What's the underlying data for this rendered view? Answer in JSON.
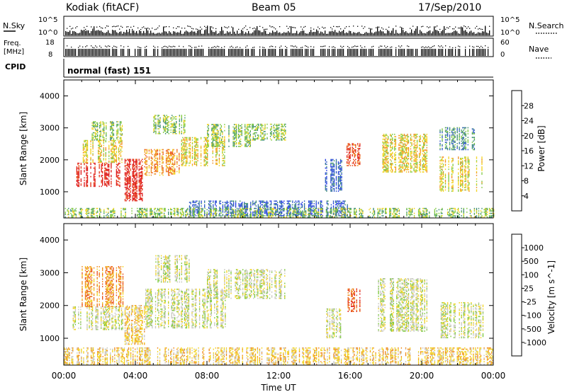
{
  "header": {
    "station": "Kodiak (fitACF)",
    "beam": "Beam 05",
    "date": "17/Sep/2010"
  },
  "strips": {
    "nsky": {
      "label": "N.Sky",
      "ticks": [
        "10^5",
        "10^0"
      ]
    },
    "nsearch": {
      "label": "N.Search",
      "ticks": [
        "10^5",
        "10^0"
      ]
    },
    "freq": {
      "label_line1": "Freq.",
      "label_line2": "[MHz]",
      "ticks": [
        "18",
        "8"
      ]
    },
    "nave": {
      "label": "Nave",
      "ticks": [
        "60",
        "0"
      ]
    },
    "cpid": {
      "label": "CPID",
      "value": "normal (fast) 151"
    }
  },
  "chart_data": [
    {
      "type": "heatmap",
      "name": "power",
      "ylabel": "Slant Range [km]",
      "xlabel": "",
      "xlim": [
        0,
        24
      ],
      "ylim": [
        180,
        4500
      ],
      "yticks": [
        1000,
        2000,
        3000,
        4000
      ],
      "colorbar": {
        "label": "Power [dB]",
        "ticks": [
          "4",
          "8",
          "12",
          "16",
          "20",
          "24",
          "28"
        ],
        "colors": [
          "#1f35e6",
          "#2a56c6",
          "#3a8c6e",
          "#7cc83c",
          "#f2d21c",
          "#f08a1c",
          "#e94a14",
          "#dd1010"
        ]
      },
      "regions": [
        {
          "t0": 0.7,
          "t1": 3.3,
          "r0": 1150,
          "r1": 1900,
          "level": 7
        },
        {
          "t0": 1.0,
          "t1": 3.3,
          "r0": 1900,
          "r1": 2600,
          "level": 4
        },
        {
          "t0": 1.5,
          "t1": 3.3,
          "r0": 2600,
          "r1": 3200,
          "level": 3
        },
        {
          "t0": 3.4,
          "t1": 4.5,
          "r0": 700,
          "r1": 2000,
          "level": 7
        },
        {
          "t0": 4.5,
          "t1": 6.5,
          "r0": 1500,
          "r1": 2300,
          "level": 5
        },
        {
          "t0": 5.0,
          "t1": 6.8,
          "r0": 2800,
          "r1": 3400,
          "level": 3
        },
        {
          "t0": 6.5,
          "t1": 9.0,
          "r0": 1800,
          "r1": 2700,
          "level": 4
        },
        {
          "t0": 8.0,
          "t1": 10.5,
          "r0": 2400,
          "r1": 3100,
          "level": 3
        },
        {
          "t0": 10.5,
          "t1": 12.4,
          "r0": 2600,
          "r1": 3100,
          "level": 3
        },
        {
          "t0": 14.6,
          "t1": 15.6,
          "r0": 1000,
          "r1": 2000,
          "level": 1
        },
        {
          "t0": 15.8,
          "t1": 16.6,
          "r0": 1800,
          "r1": 2500,
          "level": 6
        },
        {
          "t0": 17.8,
          "t1": 20.3,
          "r0": 1600,
          "r1": 2800,
          "level": 4
        },
        {
          "t0": 21.0,
          "t1": 23.4,
          "r0": 1000,
          "r1": 2100,
          "level": 4
        },
        {
          "t0": 21.0,
          "t1": 23.0,
          "r0": 2300,
          "r1": 3000,
          "level": 2
        },
        {
          "t0": 7.0,
          "t1": 16.0,
          "r0": 230,
          "r1": 700,
          "level": 1
        },
        {
          "t0": 0.0,
          "t1": 24.0,
          "r0": 190,
          "r1": 480,
          "level": 3
        }
      ]
    },
    {
      "type": "heatmap",
      "name": "velocity",
      "ylabel": "Slant Range [km]",
      "xlabel": "Time UT",
      "xlim": [
        0,
        24
      ],
      "ylim": [
        180,
        4500
      ],
      "yticks": [
        1000,
        2000,
        3000,
        4000
      ],
      "xticks": [
        "00:00",
        "04:00",
        "08:00",
        "12:00",
        "16:00",
        "20:00",
        "00:00"
      ],
      "colorbar": {
        "label": "Velocity [m s^-1]",
        "ticks": [
          "1000",
          "500",
          "100",
          "25",
          "-25",
          "-100",
          "-500",
          "-1000"
        ],
        "colors": [
          "#1f35e6",
          "#2a56c6",
          "#3a8c6e",
          "#7cc83c",
          "#c8c8c0",
          "#f2d21c",
          "#f08a1c",
          "#e94a14",
          "#dd1010"
        ]
      },
      "regions": [
        {
          "t0": 0.5,
          "t1": 3.3,
          "r0": 1250,
          "r1": 1950,
          "level": 4
        },
        {
          "t0": 1.0,
          "t1": 3.3,
          "r0": 1950,
          "r1": 3200,
          "level": 6
        },
        {
          "t0": 3.4,
          "t1": 4.5,
          "r0": 800,
          "r1": 2000,
          "level": 5
        },
        {
          "t0": 4.5,
          "t1": 9.0,
          "r0": 1300,
          "r1": 2500,
          "level": 4
        },
        {
          "t0": 5.0,
          "t1": 7.0,
          "r0": 2700,
          "r1": 3500,
          "level": 4
        },
        {
          "t0": 8.0,
          "t1": 12.4,
          "r0": 2200,
          "r1": 3100,
          "level": 4
        },
        {
          "t0": 14.6,
          "t1": 15.6,
          "r0": 1000,
          "r1": 1900,
          "level": 4
        },
        {
          "t0": 15.8,
          "t1": 16.6,
          "r0": 1800,
          "r1": 2500,
          "level": 7
        },
        {
          "t0": 17.5,
          "t1": 20.3,
          "r0": 1200,
          "r1": 2800,
          "level": 4
        },
        {
          "t0": 21.0,
          "t1": 23.4,
          "r0": 1000,
          "r1": 2100,
          "level": 4
        },
        {
          "t0": 0.0,
          "t1": 24.0,
          "r0": 190,
          "r1": 700,
          "level": 5
        }
      ]
    }
  ]
}
